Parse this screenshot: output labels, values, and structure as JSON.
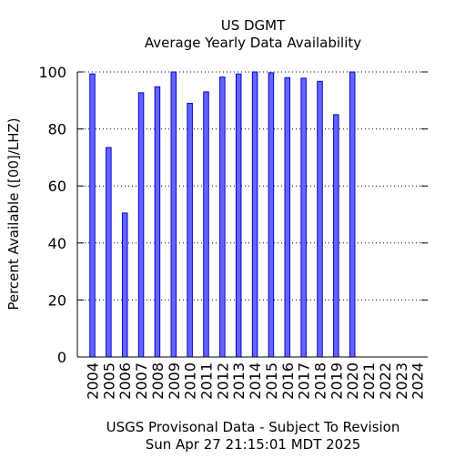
{
  "chart_data": {
    "type": "bar",
    "title": "US DGMT",
    "subtitle": "Average Yearly Data Availability",
    "xlabel": "",
    "ylabel": "Percent Available ([00]/LHZ)",
    "categories": [
      "2004",
      "2005",
      "2006",
      "2007",
      "2008",
      "2009",
      "2010",
      "2011",
      "2012",
      "2013",
      "2014",
      "2015",
      "2016",
      "2017",
      "2018",
      "2019",
      "2020",
      "2021",
      "2022",
      "2023",
      "2024"
    ],
    "values": [
      99.3,
      73.5,
      50.5,
      92.7,
      94.8,
      100,
      89,
      93,
      98.2,
      99.3,
      100,
      99.7,
      98,
      97.8,
      96.7,
      85,
      100,
      null,
      null,
      null,
      null
    ],
    "ylim": [
      0,
      100
    ],
    "yticks": [
      "0",
      "20",
      "40",
      "60",
      "80",
      "100"
    ],
    "grid": true,
    "bar_color": "#6666ff",
    "bar_edge_color": "#0000cc"
  },
  "footer": {
    "line1": "USGS Provisonal Data - Subject To Revision",
    "line2": "Sun Apr 27 21:15:01 MDT 2025"
  }
}
